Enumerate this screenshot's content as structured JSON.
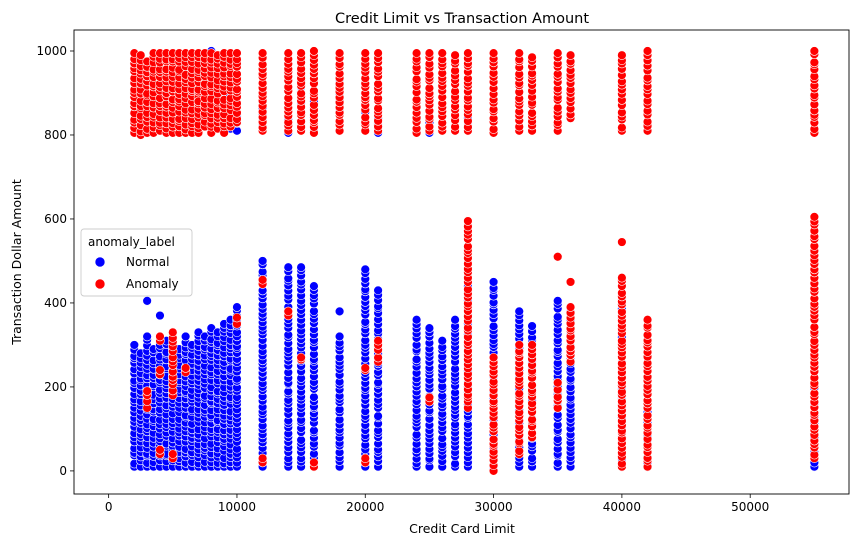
{
  "chart_data": {
    "type": "scatter",
    "title": "Credit Limit vs Transaction Amount",
    "xlabel": "Credit Card Limit",
    "ylabel": "Transaction Dollar Amount",
    "xlim": [
      -2700,
      57700
    ],
    "ylim": [
      -55,
      1050
    ],
    "x_ticks": [
      0,
      10000,
      20000,
      30000,
      40000,
      50000
    ],
    "x_tick_labels": [
      "0",
      "10000",
      "20000",
      "30000",
      "40000",
      "50000"
    ],
    "y_ticks": [
      0,
      200,
      400,
      600,
      800,
      1000
    ],
    "y_tick_labels": [
      "0",
      "200",
      "400",
      "600",
      "800",
      "1000"
    ],
    "grid": false,
    "legend": {
      "title": "anomaly_label",
      "placement": "center-left",
      "entries": [
        {
          "label": "Normal",
          "color": "#0000ff"
        },
        {
          "label": "Anomaly",
          "color": "#ff0000"
        }
      ]
    },
    "series": [
      {
        "name": "Normal",
        "color": "#0000ff",
        "marker_edge": "#ffffff",
        "columns": [
          {
            "x": 2000,
            "ranges": [
              [
                10,
                300
              ]
            ]
          },
          {
            "x": 2500,
            "ranges": [
              [
                10,
                280
              ]
            ]
          },
          {
            "x": 3000,
            "ranges": [
              [
                10,
                320
              ],
              [
                405,
                405
              ]
            ]
          },
          {
            "x": 3500,
            "ranges": [
              [
                10,
                290
              ]
            ]
          },
          {
            "x": 4000,
            "ranges": [
              [
                10,
                300
              ],
              [
                370,
                370
              ],
              [
                815,
                840
              ]
            ]
          },
          {
            "x": 4500,
            "ranges": [
              [
                10,
                310
              ]
            ]
          },
          {
            "x": 5000,
            "ranges": [
              [
                10,
                300
              ],
              [
                820,
                870
              ]
            ]
          },
          {
            "x": 5500,
            "ranges": [
              [
                10,
                290
              ]
            ]
          },
          {
            "x": 6000,
            "ranges": [
              [
                10,
                320
              ],
              [
                815,
                860
              ]
            ]
          },
          {
            "x": 6500,
            "ranges": [
              [
                10,
                300
              ]
            ]
          },
          {
            "x": 7000,
            "ranges": [
              [
                10,
                330
              ],
              [
                820,
                880
              ]
            ]
          },
          {
            "x": 7500,
            "ranges": [
              [
                10,
                320
              ]
            ]
          },
          {
            "x": 8000,
            "ranges": [
              [
                10,
                340
              ],
              [
                810,
                1000
              ]
            ]
          },
          {
            "x": 8500,
            "ranges": [
              [
                10,
                330
              ],
              [
                820,
                900
              ]
            ]
          },
          {
            "x": 9000,
            "ranges": [
              [
                10,
                350
              ],
              [
                810,
                920
              ]
            ]
          },
          {
            "x": 9500,
            "ranges": [
              [
                10,
                360
              ],
              [
                815,
                860
              ]
            ]
          },
          {
            "x": 10000,
            "ranges": [
              [
                10,
                390
              ],
              [
                810,
                870
              ]
            ]
          },
          {
            "x": 12000,
            "ranges": [
              [
                10,
                500
              ],
              [
                810,
                880
              ]
            ]
          },
          {
            "x": 14000,
            "ranges": [
              [
                10,
                485
              ],
              [
                805,
                860
              ]
            ]
          },
          {
            "x": 15000,
            "ranges": [
              [
                10,
                485
              ],
              [
                810,
                940
              ]
            ]
          },
          {
            "x": 16000,
            "ranges": [
              [
                10,
                440
              ],
              [
                810,
                880
              ]
            ]
          },
          {
            "x": 18000,
            "ranges": [
              [
                10,
                320
              ],
              [
                380,
                380
              ],
              [
                810,
                940
              ]
            ]
          },
          {
            "x": 20000,
            "ranges": [
              [
                10,
                480
              ],
              [
                855,
                855
              ]
            ]
          },
          {
            "x": 21000,
            "ranges": [
              [
                10,
                430
              ],
              [
                805,
                840
              ]
            ]
          },
          {
            "x": 24000,
            "ranges": [
              [
                10,
                360
              ]
            ]
          },
          {
            "x": 25000,
            "ranges": [
              [
                10,
                340
              ],
              [
                805,
                830
              ]
            ]
          },
          {
            "x": 26000,
            "ranges": [
              [
                10,
                310
              ]
            ]
          },
          {
            "x": 27000,
            "ranges": [
              [
                10,
                360
              ]
            ]
          },
          {
            "x": 28000,
            "ranges": [
              [
                10,
                440
              ],
              [
                830,
                840
              ]
            ]
          },
          {
            "x": 30000,
            "ranges": [
              [
                10,
                450
              ]
            ]
          },
          {
            "x": 32000,
            "ranges": [
              [
                10,
                380
              ]
            ]
          },
          {
            "x": 33000,
            "ranges": [
              [
                10,
                345
              ]
            ]
          },
          {
            "x": 35000,
            "ranges": [
              [
                10,
                405
              ]
            ]
          },
          {
            "x": 36000,
            "ranges": [
              [
                10,
                390
              ]
            ]
          },
          {
            "x": 40000,
            "ranges": [
              [
                10,
                420
              ]
            ]
          },
          {
            "x": 42000,
            "ranges": [
              [
                10,
                140
              ]
            ]
          },
          {
            "x": 55000,
            "ranges": [
              [
                10,
                220
              ]
            ]
          }
        ]
      },
      {
        "name": "Anomaly",
        "color": "#ff0000",
        "marker_edge": "#ffffff",
        "columns": [
          {
            "x": 2000,
            "ranges": [
              [
                805,
                995
              ]
            ]
          },
          {
            "x": 2500,
            "ranges": [
              [
                800,
                990
              ]
            ]
          },
          {
            "x": 3000,
            "ranges": [
              [
                805,
                975
              ],
              [
                150,
                190
              ]
            ]
          },
          {
            "x": 3500,
            "ranges": [
              [
                805,
                995
              ]
            ]
          },
          {
            "x": 4000,
            "ranges": [
              [
                810,
                995
              ],
              [
                40,
                50
              ],
              [
                230,
                240
              ],
              [
                310,
                320
              ]
            ]
          },
          {
            "x": 4500,
            "ranges": [
              [
                805,
                995
              ]
            ]
          },
          {
            "x": 5000,
            "ranges": [
              [
                805,
                995
              ],
              [
                30,
                40
              ],
              [
                180,
                330
              ]
            ]
          },
          {
            "x": 5500,
            "ranges": [
              [
                805,
                995
              ]
            ]
          },
          {
            "x": 6000,
            "ranges": [
              [
                805,
                995
              ],
              [
                235,
                245
              ]
            ]
          },
          {
            "x": 6500,
            "ranges": [
              [
                805,
                995
              ]
            ]
          },
          {
            "x": 7000,
            "ranges": [
              [
                805,
                995
              ],
              [
                875,
                880
              ]
            ]
          },
          {
            "x": 7500,
            "ranges": [
              [
                820,
                995
              ]
            ]
          },
          {
            "x": 8000,
            "ranges": [
              [
                805,
                995
              ]
            ]
          },
          {
            "x": 8500,
            "ranges": [
              [
                815,
                990
              ]
            ]
          },
          {
            "x": 9000,
            "ranges": [
              [
                805,
                995
              ]
            ]
          },
          {
            "x": 9500,
            "ranges": [
              [
                820,
                995
              ]
            ]
          },
          {
            "x": 10000,
            "ranges": [
              [
                830,
                995
              ],
              [
                350,
                365
              ]
            ]
          },
          {
            "x": 12000,
            "ranges": [
              [
                810,
                995
              ],
              [
                20,
                30
              ],
              [
                445,
                455
              ]
            ]
          },
          {
            "x": 14000,
            "ranges": [
              [
                810,
                995
              ],
              [
                370,
                380
              ]
            ]
          },
          {
            "x": 15000,
            "ranges": [
              [
                810,
                995
              ],
              [
                265,
                270
              ]
            ]
          },
          {
            "x": 16000,
            "ranges": [
              [
                805,
                1000
              ],
              [
                10,
                20
              ]
            ]
          },
          {
            "x": 18000,
            "ranges": [
              [
                810,
                995
              ]
            ]
          },
          {
            "x": 20000,
            "ranges": [
              [
                810,
                995
              ],
              [
                20,
                30
              ],
              [
                240,
                245
              ]
            ]
          },
          {
            "x": 21000,
            "ranges": [
              [
                810,
                995
              ],
              [
                260,
                310
              ]
            ]
          },
          {
            "x": 24000,
            "ranges": [
              [
                805,
                995
              ]
            ]
          },
          {
            "x": 25000,
            "ranges": [
              [
                810,
                995
              ],
              [
                165,
                175
              ]
            ]
          },
          {
            "x": 26000,
            "ranges": [
              [
                810,
                995
              ]
            ]
          },
          {
            "x": 27000,
            "ranges": [
              [
                810,
                990
              ]
            ]
          },
          {
            "x": 28000,
            "ranges": [
              [
                810,
                995
              ],
              [
                150,
                595
              ]
            ]
          },
          {
            "x": 30000,
            "ranges": [
              [
                805,
                995
              ],
              [
                0,
                270
              ]
            ]
          },
          {
            "x": 32000,
            "ranges": [
              [
                810,
                995
              ],
              [
                40,
                300
              ]
            ]
          },
          {
            "x": 33000,
            "ranges": [
              [
                810,
                985
              ],
              [
                80,
                300
              ]
            ]
          },
          {
            "x": 35000,
            "ranges": [
              [
                810,
                995
              ],
              [
                150,
                210
              ],
              [
                510,
                510
              ]
            ]
          },
          {
            "x": 36000,
            "ranges": [
              [
                840,
                990
              ],
              [
                260,
                390
              ],
              [
                450,
                450
              ]
            ]
          },
          {
            "x": 40000,
            "ranges": [
              [
                810,
                990
              ],
              [
                10,
                460
              ],
              [
                545,
                545
              ]
            ]
          },
          {
            "x": 42000,
            "ranges": [
              [
                810,
                1000
              ],
              [
                10,
                360
              ]
            ]
          },
          {
            "x": 55000,
            "ranges": [
              [
                805,
                1000
              ],
              [
                30,
                605
              ]
            ]
          }
        ]
      }
    ]
  }
}
